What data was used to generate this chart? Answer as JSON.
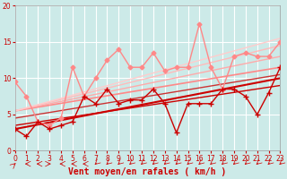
{
  "xlabel": "Vent moyen/en rafales ( km/h )",
  "xlim": [
    0,
    23
  ],
  "ylim": [
    0,
    20
  ],
  "xticks": [
    0,
    1,
    2,
    3,
    4,
    5,
    6,
    7,
    8,
    9,
    10,
    11,
    12,
    13,
    14,
    15,
    16,
    17,
    18,
    19,
    20,
    21,
    22,
    23
  ],
  "yticks": [
    0,
    5,
    10,
    15,
    20
  ],
  "background_color": "#cceae8",
  "grid_color": "#ffffff",
  "series_dark": {
    "x": [
      0,
      1,
      2,
      3,
      4,
      5,
      6,
      7,
      8,
      9,
      10,
      11,
      12,
      13,
      14,
      15,
      16,
      17,
      18,
      19,
      20,
      21,
      22,
      23
    ],
    "y": [
      3.0,
      2.0,
      4.0,
      3.0,
      3.5,
      4.0,
      7.5,
      6.5,
      8.5,
      6.5,
      7.0,
      7.0,
      8.5,
      6.5,
      2.5,
      6.5,
      6.5,
      6.5,
      8.5,
      8.5,
      7.5,
      5.0,
      8.0,
      11.5
    ],
    "color": "#cc0000",
    "lw": 1.0,
    "marker": "+",
    "ms": 4
  },
  "series_light": {
    "x": [
      0,
      1,
      2,
      3,
      4,
      5,
      6,
      7,
      8,
      9,
      10,
      11,
      12,
      13,
      14,
      15,
      16,
      17,
      18,
      19,
      20,
      21,
      22,
      23
    ],
    "y": [
      9.5,
      7.5,
      4.0,
      3.5,
      4.5,
      11.5,
      7.5,
      10.0,
      12.5,
      14.0,
      11.5,
      11.5,
      13.5,
      11.0,
      11.5,
      11.5,
      17.5,
      11.5,
      8.5,
      13.0,
      13.5,
      13.0,
      13.0,
      15.0
    ],
    "color": "#ff8888",
    "lw": 1.0,
    "marker": "D",
    "ms": 2.5
  },
  "trend_lines": [
    {
      "x0": 0,
      "y0": 3.0,
      "x1": 23,
      "y1": 10.0,
      "color": "#cc0000",
      "lw": 1.5
    },
    {
      "x0": 0,
      "y0": 3.5,
      "x1": 23,
      "y1": 9.0,
      "color": "#cc0000",
      "lw": 1.0
    },
    {
      "x0": 0,
      "y0": 4.5,
      "x1": 23,
      "y1": 10.5,
      "color": "#cc3333",
      "lw": 1.0
    },
    {
      "x0": 0,
      "y0": 5.5,
      "x1": 23,
      "y1": 11.5,
      "color": "#ff8888",
      "lw": 1.2
    },
    {
      "x0": 0,
      "y0": 5.5,
      "x1": 23,
      "y1": 13.0,
      "color": "#ffaaaa",
      "lw": 1.0
    },
    {
      "x0": 0,
      "y0": 5.5,
      "x1": 23,
      "y1": 14.5,
      "color": "#ffbbbb",
      "lw": 1.0
    },
    {
      "x0": 0,
      "y0": 5.5,
      "x1": 23,
      "y1": 15.5,
      "color": "#ffcccc",
      "lw": 1.0
    }
  ],
  "wind_arrows": {
    "x": [
      0,
      1,
      2,
      3,
      4,
      5,
      6,
      7,
      8,
      9,
      10,
      11,
      12,
      13,
      14,
      15,
      16,
      17,
      18,
      19,
      20,
      21,
      22,
      23
    ],
    "angles_deg": [
      45,
      270,
      270,
      90,
      270,
      270,
      270,
      225,
      225,
      225,
      225,
      225,
      225,
      225,
      225,
      225,
      225,
      225,
      225,
      225,
      225,
      225,
      225,
      225
    ],
    "color": "#cc0000"
  },
  "tick_fontsize": 5.5,
  "label_fontsize": 7,
  "label_color": "#cc0000"
}
